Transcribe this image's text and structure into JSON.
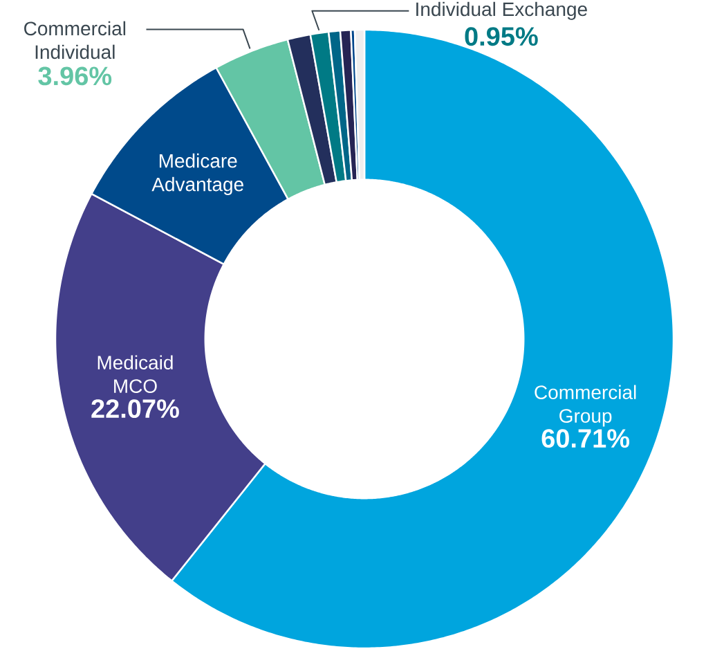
{
  "chart_data": {
    "type": "donut",
    "categories": [
      "Commercial Group",
      "Medicaid MCO",
      "Medicare Advantage",
      "Commercial Individual",
      null,
      "Individual Exchange",
      null,
      null,
      null,
      null
    ],
    "values": [
      60.71,
      22.07,
      9.26,
      3.96,
      1.2,
      0.95,
      0.6,
      0.55,
      0.2,
      0.5
    ],
    "colors": [
      "#00a5de",
      "#433f8a",
      "#004a8b",
      "#63c5a5",
      "#232f5c",
      "#007a85",
      "#006688",
      "#262454",
      "#00468b",
      "#eeeeee"
    ],
    "value_labels": [
      "60.71%",
      "22.07%",
      null,
      "3.96%",
      null,
      "0.95%",
      null,
      null,
      null,
      null
    ]
  }
}
